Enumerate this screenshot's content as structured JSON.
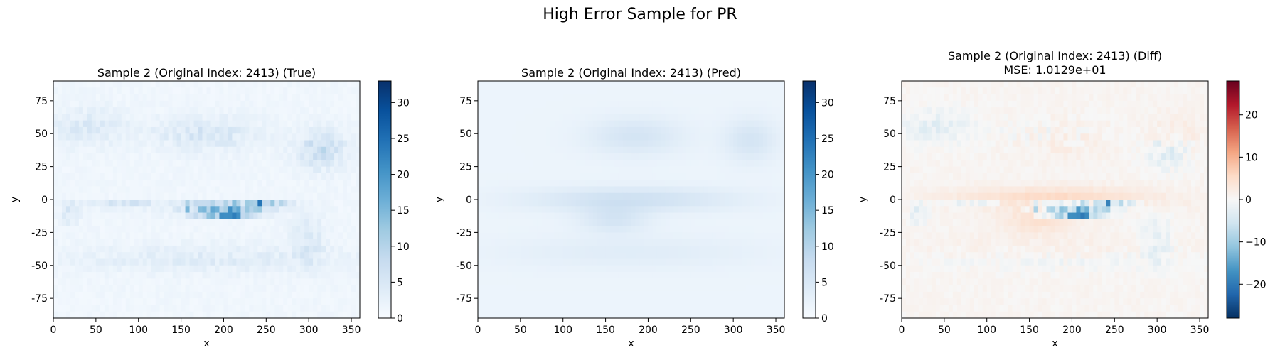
{
  "figure": {
    "title": "High Error Sample for PR"
  },
  "chart_data": [
    {
      "type": "heatmap",
      "title": "Sample 2 (Original Index: 2413) (True)",
      "subtitle": "",
      "xlabel": "x",
      "ylabel": "y",
      "xlim": [
        0,
        360
      ],
      "ylim": [
        -90,
        90
      ],
      "xticks": [
        0,
        50,
        100,
        150,
        200,
        250,
        300,
        350
      ],
      "yticks": [
        75,
        50,
        25,
        0,
        -25,
        -50,
        -75
      ],
      "colormap": "Blues",
      "colorbar": {
        "range": [
          0,
          33
        ],
        "ticks": [
          0,
          5,
          10,
          15,
          20,
          25,
          30
        ]
      },
      "grid": false,
      "field": "true_precip"
    },
    {
      "type": "heatmap",
      "title": "Sample 2 (Original Index: 2413) (Pred)",
      "subtitle": "",
      "xlabel": "x",
      "ylabel": "y",
      "xlim": [
        0,
        360
      ],
      "ylim": [
        -90,
        90
      ],
      "xticks": [
        0,
        50,
        100,
        150,
        200,
        250,
        300,
        350
      ],
      "yticks": [
        75,
        50,
        25,
        0,
        -25,
        -50,
        -75
      ],
      "colormap": "Blues",
      "colorbar": {
        "range": [
          0,
          33
        ],
        "ticks": [
          0,
          5,
          10,
          15,
          20,
          25,
          30
        ]
      },
      "grid": false,
      "field": "pred_precip"
    },
    {
      "type": "heatmap",
      "title": "Sample 2 (Original Index: 2413) (Diff)",
      "subtitle": "MSE: 1.0129e+01",
      "xlabel": "x",
      "ylabel": "y",
      "xlim": [
        0,
        360
      ],
      "ylim": [
        -90,
        90
      ],
      "xticks": [
        0,
        50,
        100,
        150,
        200,
        250,
        300,
        350
      ],
      "yticks": [
        75,
        50,
        25,
        0,
        -25,
        -50,
        -75
      ],
      "colormap": "RdBu_r",
      "colorbar": {
        "range": [
          -28,
          28
        ],
        "ticks": [
          20,
          10,
          0,
          -10,
          -20
        ]
      },
      "grid": false,
      "field": "pred_minus_true"
    }
  ]
}
